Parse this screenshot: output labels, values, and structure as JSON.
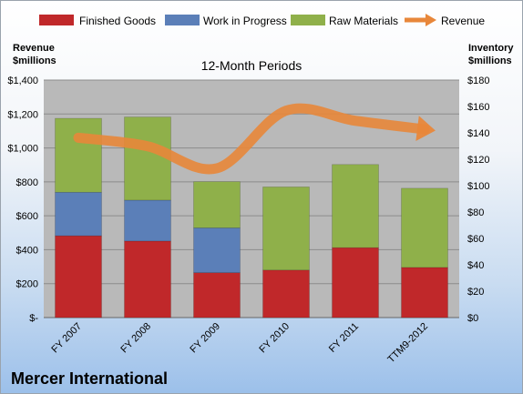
{
  "chart_data": {
    "type": "bar",
    "stacked": true,
    "title": "12-Month Periods",
    "company": "Mercer International",
    "left_axis_title": [
      "Revenue",
      "$millions"
    ],
    "right_axis_title": [
      "Inventory",
      "$millions"
    ],
    "categories": [
      "FY 2007",
      "FY 2008",
      "FY 2009",
      "FY 2010",
      "FY 2011",
      "TTM9-2012"
    ],
    "left_ticks": [
      "$-",
      "$200",
      "$400",
      "$600",
      "$800",
      "$1,000",
      "$1,200",
      "$1,400"
    ],
    "right_ticks": [
      "$0",
      "$20",
      "$40",
      "$60",
      "$80",
      "$100",
      "$120",
      "$140",
      "$160",
      "$180"
    ],
    "right_ylim": [
      0,
      180
    ],
    "left_ylim": [
      0,
      1400
    ],
    "series": [
      {
        "name": "Finished Goods",
        "axis": "right",
        "color": "#c0282a",
        "values": [
          62,
          58,
          34,
          36,
          53,
          38
        ]
      },
      {
        "name": "Work in Progress",
        "axis": "right",
        "color": "#5b7fb8",
        "values": [
          33,
          31,
          34,
          0,
          0,
          0
        ]
      },
      {
        "name": "Raw Materials",
        "axis": "right",
        "color": "#8fb04a",
        "values": [
          56,
          63,
          35,
          63,
          63,
          60
        ]
      }
    ],
    "line_series": {
      "name": "Revenue",
      "axis": "left",
      "color": "#e8873a",
      "values": [
        1060,
        1010,
        880,
        1220,
        1160,
        1110
      ]
    },
    "legend_position": "top",
    "grid": true
  }
}
